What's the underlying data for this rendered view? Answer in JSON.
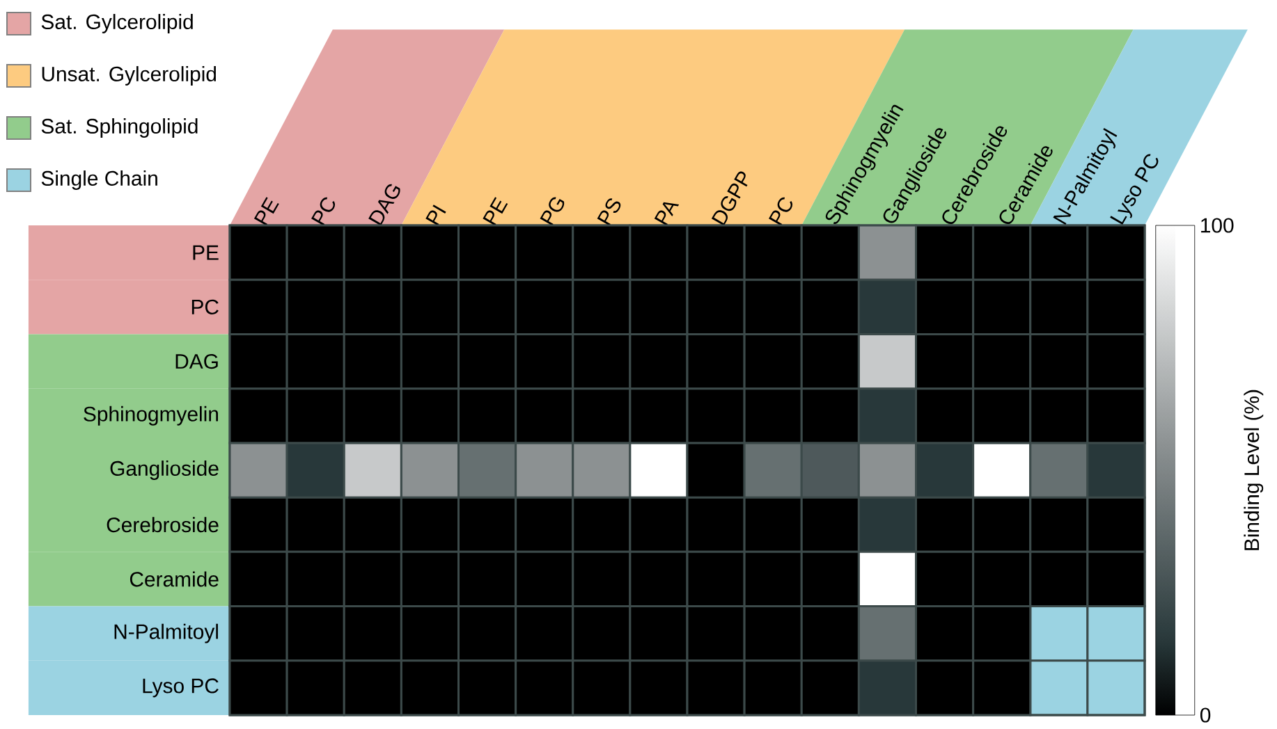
{
  "chart_data": {
    "type": "heatmap",
    "categories": [
      "PE",
      "PC",
      "DAG",
      "PI",
      "PE",
      "PG",
      "PS",
      "PA",
      "DGPP",
      "PC",
      "Sphinogmyelin",
      "Ganglioside",
      "Cerebroside",
      "Ceramide",
      "N-Palmitoyl",
      "Lyso PC"
    ],
    "y_categories": [
      "PE",
      "PC",
      "DAG",
      "Sphinogmyelin",
      "Ganglioside",
      "Cerebroside",
      "Ceramide",
      "N-Palmitoyl",
      "Lyso PC"
    ],
    "cells": [
      [
        0,
        0,
        0,
        0,
        0,
        0,
        0,
        0,
        0,
        0,
        0,
        55,
        0,
        0,
        0,
        0
      ],
      [
        0,
        0,
        0,
        0,
        0,
        0,
        0,
        0,
        0,
        0,
        0,
        15,
        0,
        0,
        0,
        0
      ],
      [
        0,
        0,
        0,
        0,
        0,
        0,
        0,
        0,
        0,
        0,
        0,
        78,
        0,
        0,
        0,
        0
      ],
      [
        0,
        0,
        0,
        0,
        0,
        0,
        0,
        0,
        0,
        0,
        0,
        15,
        0,
        0,
        0,
        0
      ],
      [
        55,
        15,
        78,
        55,
        40,
        55,
        55,
        100,
        0,
        40,
        30,
        55,
        15,
        100,
        40,
        15
      ],
      [
        0,
        0,
        0,
        0,
        0,
        0,
        0,
        0,
        0,
        0,
        0,
        15,
        0,
        0,
        0,
        0
      ],
      [
        0,
        0,
        0,
        0,
        0,
        0,
        0,
        0,
        0,
        0,
        0,
        100,
        0,
        0,
        0,
        0
      ],
      [
        0,
        0,
        0,
        0,
        0,
        0,
        0,
        0,
        0,
        0,
        0,
        40,
        0,
        0,
        null,
        null
      ],
      [
        0,
        0,
        0,
        0,
        0,
        0,
        0,
        0,
        0,
        0,
        0,
        15,
        0,
        0,
        null,
        null
      ]
    ],
    "clim": [
      0,
      100
    ],
    "cticks": [
      0,
      100
    ],
    "clabel": "Binding Level (%)",
    "annotations": [
      "Sat. Gylcerolipid",
      "Unsat. Gylcerolipid",
      "Sat. Sphingolipid",
      "Single Chain"
    ]
  }
}
